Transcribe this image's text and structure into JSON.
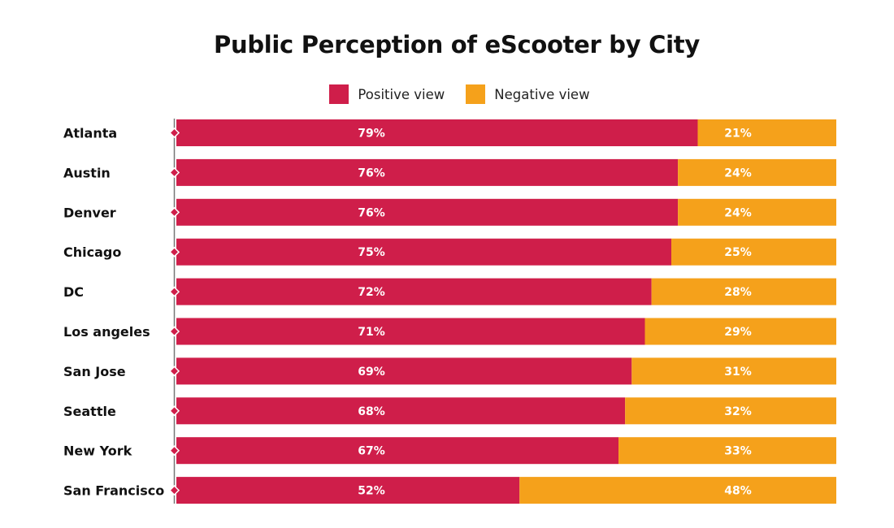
{
  "colors": {
    "positive": "#cf1e4a",
    "negative": "#f5a11b",
    "axis": "#777777"
  },
  "chart_data": {
    "type": "bar",
    "orientation": "horizontal",
    "stacked": true,
    "title": "Public Perception of eScooter by City",
    "legend_position": "top-center",
    "categories": [
      "Atlanta",
      "Austin",
      "Denver",
      "Chicago",
      "DC",
      "Los angeles",
      "San Jose",
      "Seattle",
      "New York",
      "San Francisco"
    ],
    "series": [
      {
        "name": "Positive view",
        "values": [
          79,
          76,
          76,
          75,
          72,
          71,
          69,
          68,
          67,
          52
        ],
        "labels": [
          "79%",
          "76%",
          "76%",
          "75%",
          "72%",
          "71%",
          "69%",
          "68%",
          "67%",
          "52%"
        ]
      },
      {
        "name": "Negative view",
        "values": [
          21,
          24,
          24,
          25,
          28,
          29,
          31,
          32,
          33,
          48
        ],
        "labels": [
          "21%",
          "24%",
          "24%",
          "25%",
          "28%",
          "29%",
          "31%",
          "32%",
          "33%",
          "48%"
        ]
      }
    ],
    "xlim": [
      0,
      100
    ],
    "grid": false
  }
}
